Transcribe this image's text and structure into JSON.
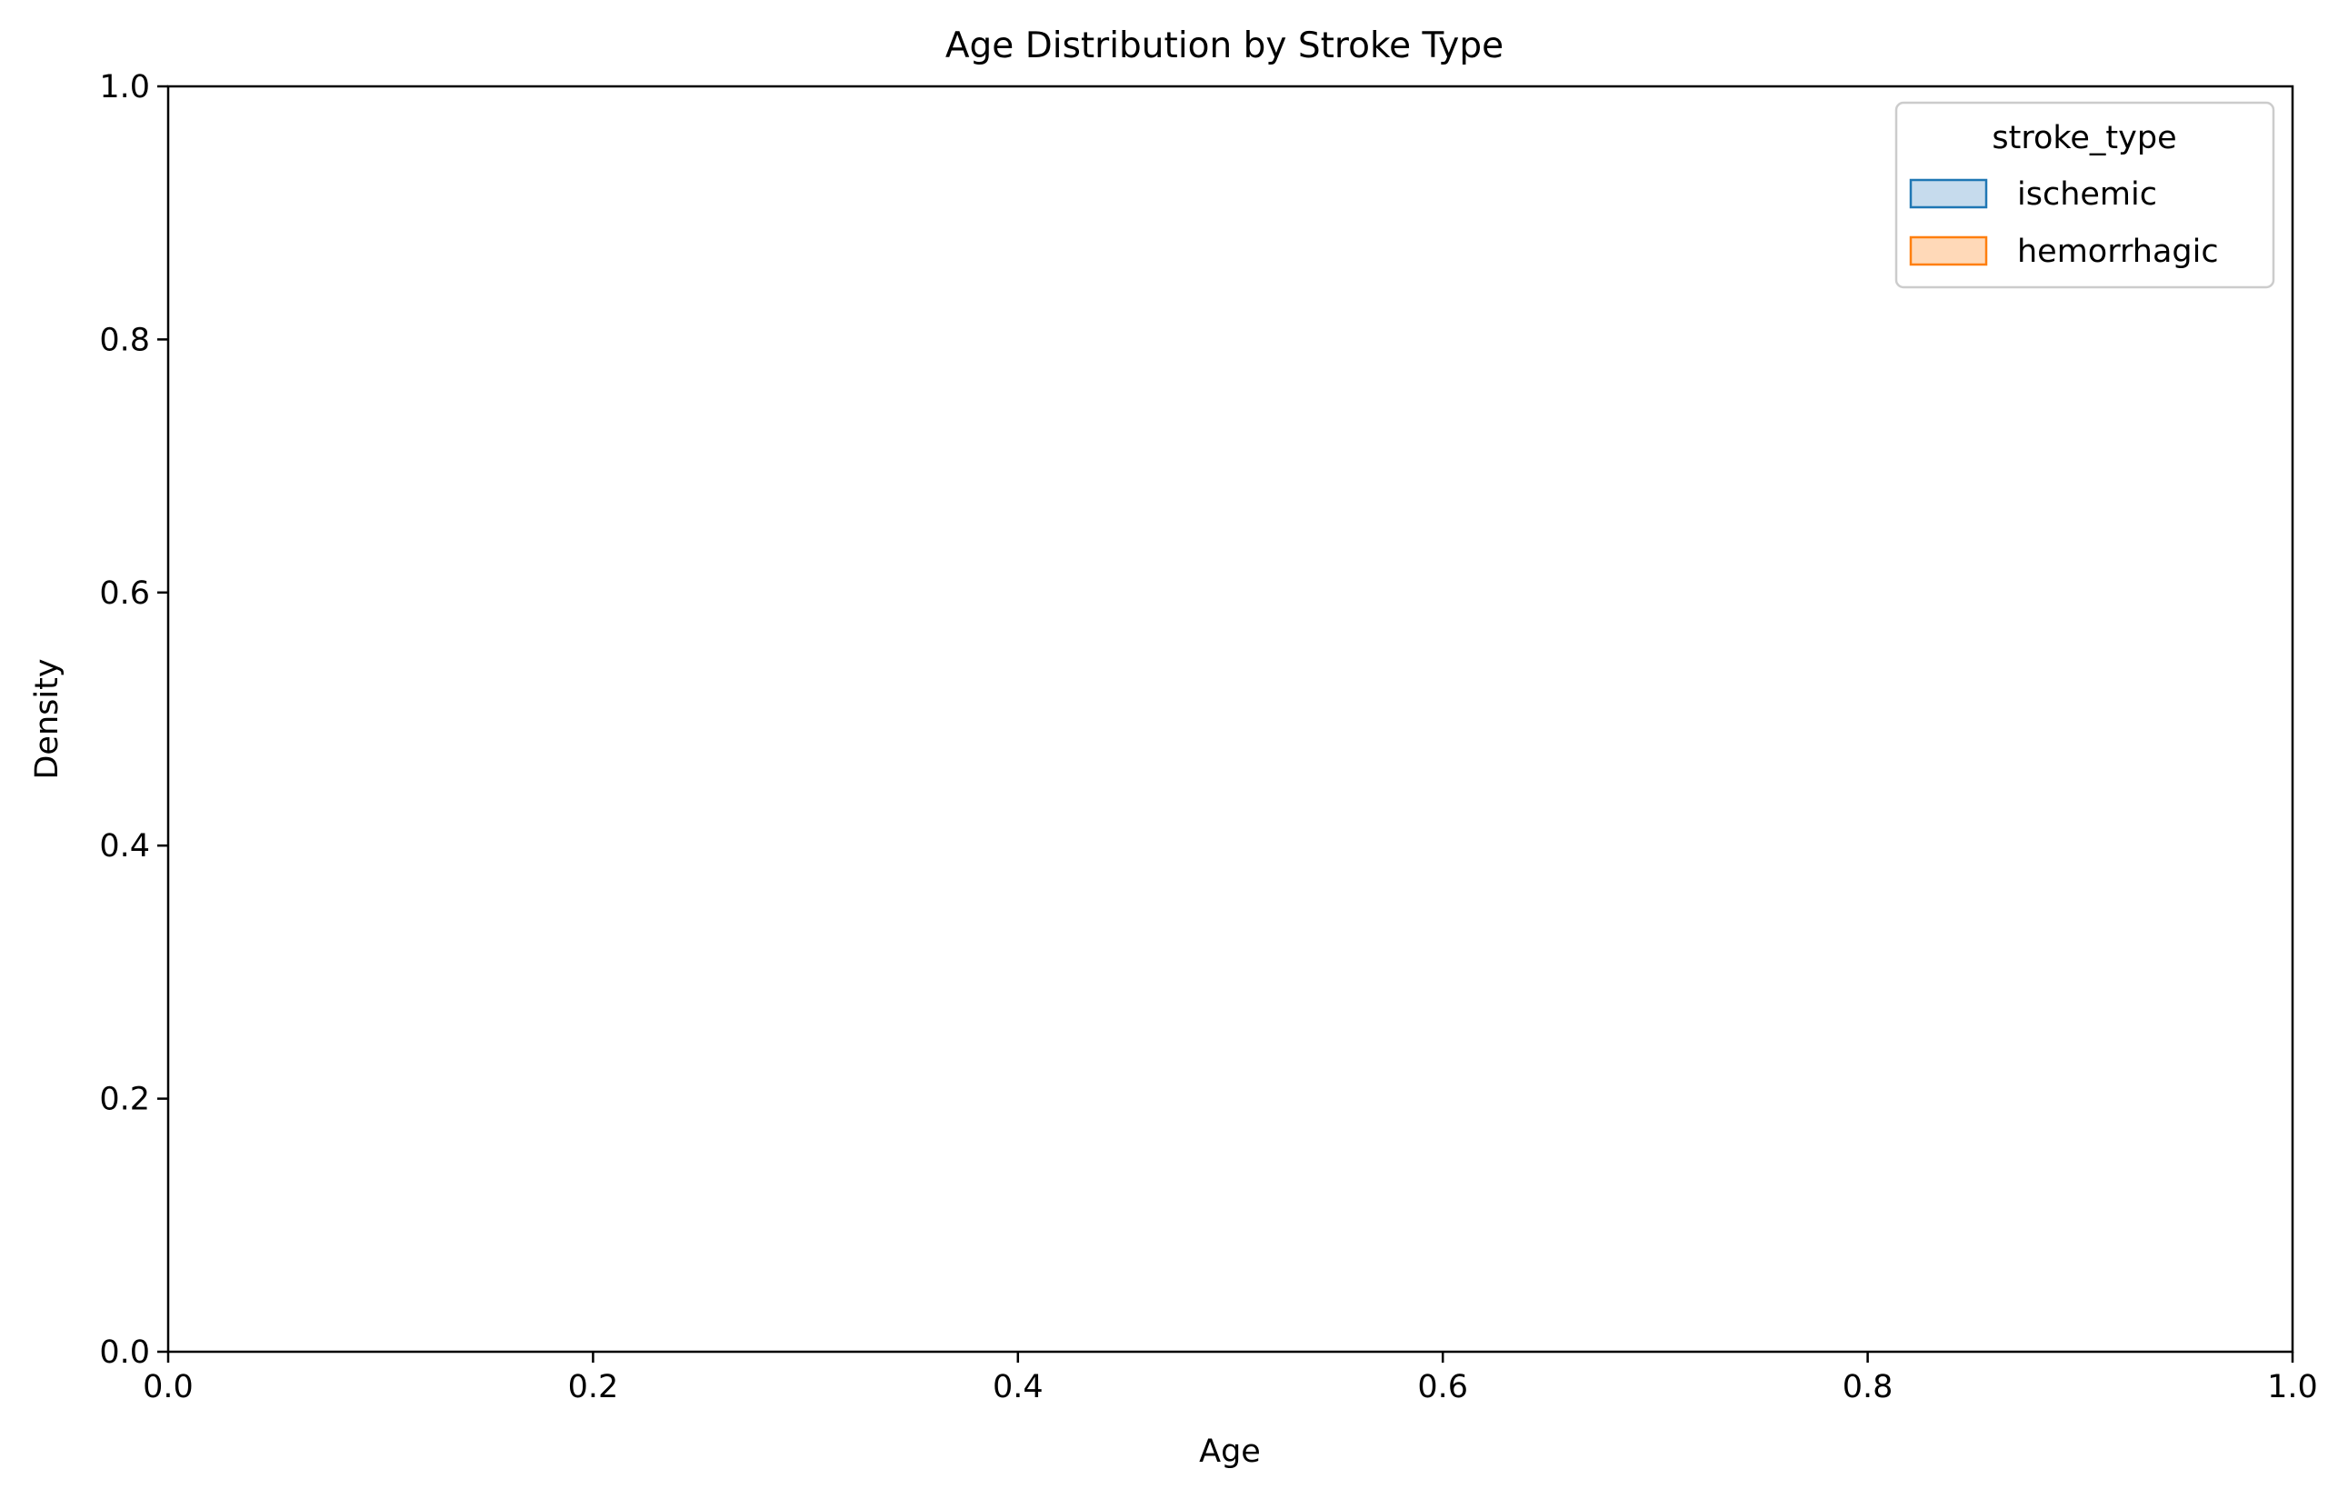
{
  "chart_data": {
    "type": "area",
    "title": "Age Distribution by Stroke Type",
    "xlabel": "Age",
    "ylabel": "Density",
    "xlim": [
      0.0,
      1.0
    ],
    "ylim": [
      0.0,
      1.0
    ],
    "xticks": [
      "0.0",
      "0.2",
      "0.4",
      "0.6",
      "0.8",
      "1.0"
    ],
    "yticks": [
      "0.0",
      "0.2",
      "0.4",
      "0.6",
      "0.8",
      "1.0"
    ],
    "grid": false,
    "legend": {
      "title": "stroke_type",
      "placement": "top-right"
    },
    "series": [
      {
        "name": "ischemic",
        "color": "#1f77b4",
        "fill": "#c6dbed",
        "values": []
      },
      {
        "name": "hemorrhagic",
        "color": "#ff7f0e",
        "fill": "#ffd9b8",
        "values": []
      }
    ]
  }
}
